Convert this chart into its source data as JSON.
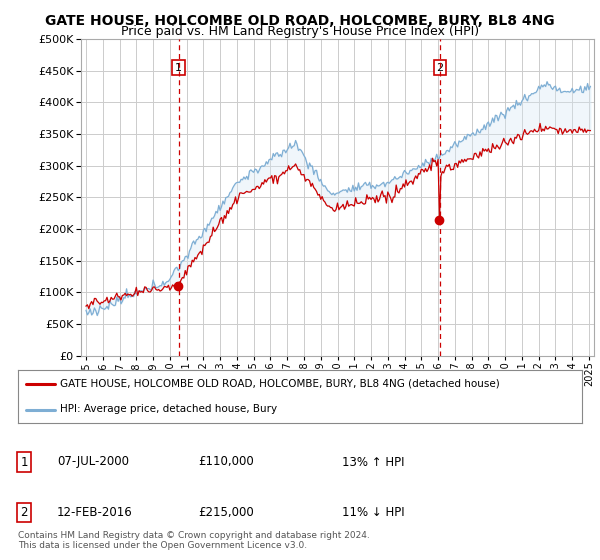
{
  "title": "GATE HOUSE, HOLCOMBE OLD ROAD, HOLCOMBE, BURY, BL8 4NG",
  "subtitle": "Price paid vs. HM Land Registry's House Price Index (HPI)",
  "title_fontsize": 10,
  "subtitle_fontsize": 9,
  "background_color": "#ffffff",
  "plot_bg_color": "#ffffff",
  "grid_color": "#cccccc",
  "sale1_date_num": 2000.52,
  "sale2_date_num": 2016.12,
  "legend_line1": "GATE HOUSE, HOLCOMBE OLD ROAD, HOLCOMBE, BURY, BL8 4NG (detached house)",
  "legend_line2": "HPI: Average price, detached house, Bury",
  "info1_label": "1",
  "info1_date": "07-JUL-2000",
  "info1_price": "£110,000",
  "info1_hpi": "13% ↑ HPI",
  "info2_label": "2",
  "info2_date": "12-FEB-2016",
  "info2_price": "£215,000",
  "info2_hpi": "11% ↓ HPI",
  "footer": "Contains HM Land Registry data © Crown copyright and database right 2024.\nThis data is licensed under the Open Government Licence v3.0.",
  "red_line_color": "#cc0000",
  "blue_line_color": "#7eaed4",
  "fill_color": "#d6e8f5",
  "sale_marker_color": "#cc0000",
  "vline_color": "#cc0000",
  "ylim": [
    0,
    500000
  ],
  "yticks": [
    0,
    50000,
    100000,
    150000,
    200000,
    250000,
    300000,
    350000,
    400000,
    450000,
    500000
  ],
  "xlim_start": 1994.7,
  "xlim_end": 2025.3,
  "sale1_price": 110000,
  "sale2_price": 215000
}
